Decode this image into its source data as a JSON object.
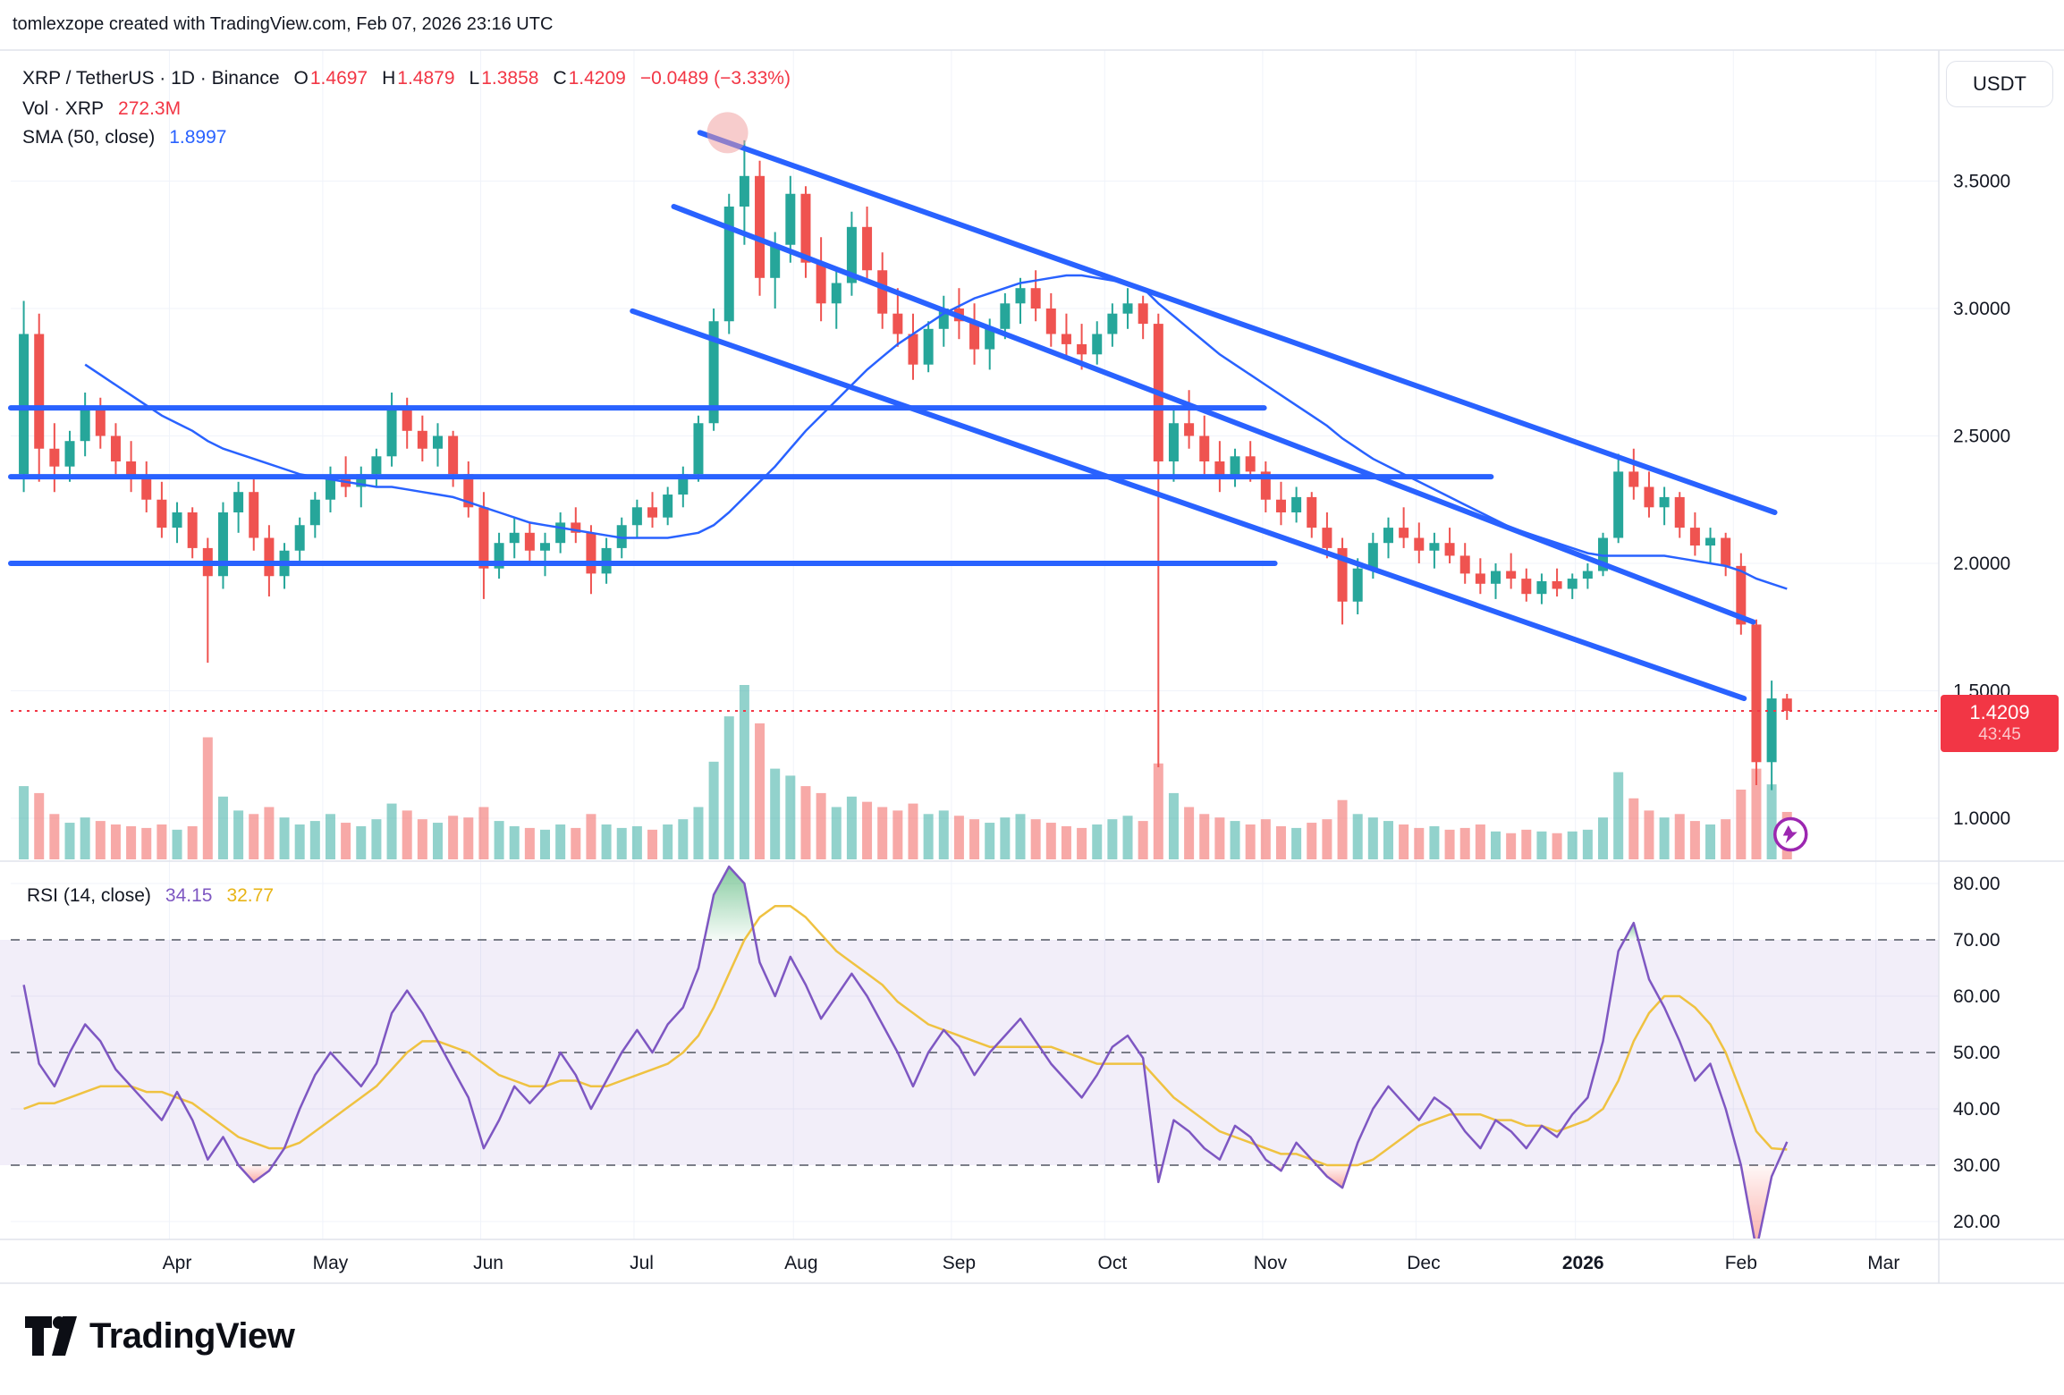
{
  "header": {
    "attribution": "tomlexzope created with TradingView.com, Feb 07, 2026 23:16 UTC"
  },
  "legend": {
    "symbol": "XRP / TetherUS · 1D · Binance",
    "o_label": "O",
    "o": "1.4697",
    "h_label": "H",
    "h": "1.4879",
    "l_label": "L",
    "l": "1.3858",
    "c_label": "C",
    "c": "1.4209",
    "change": "−0.0489 (−3.33%)",
    "vol_label": "Vol · XRP",
    "vol_value": "272.3M",
    "sma_label": "SMA (50, close)",
    "sma_value": "1.8997",
    "rsi_label": "RSI (14, close)",
    "rsi_value": "34.15",
    "rsi_ma_value": "32.77"
  },
  "price_scale": {
    "currency": "USDT",
    "last_price": "1.4209",
    "countdown": "43:45",
    "ticks": [
      {
        "label": "3.5000",
        "value": 3.5
      },
      {
        "label": "3.0000",
        "value": 3.0
      },
      {
        "label": "2.5000",
        "value": 2.5
      },
      {
        "label": "2.0000",
        "value": 2.0
      },
      {
        "label": "1.5000",
        "value": 1.5
      },
      {
        "label": "1.0000",
        "value": 1.0
      }
    ]
  },
  "rsi_scale": {
    "ticks": [
      {
        "label": "80.00",
        "value": 80
      },
      {
        "label": "70.00",
        "value": 70
      },
      {
        "label": "60.00",
        "value": 60
      },
      {
        "label": "50.00",
        "value": 50
      },
      {
        "label": "40.00",
        "value": 40
      },
      {
        "label": "30.00",
        "value": 30
      },
      {
        "label": "20.00",
        "value": 20
      }
    ]
  },
  "time_axis": {
    "months": [
      {
        "label": "Apr",
        "i": 10
      },
      {
        "label": "May",
        "i": 20
      },
      {
        "label": "Jun",
        "i": 30.3
      },
      {
        "label": "Jul",
        "i": 40.3
      },
      {
        "label": "Aug",
        "i": 50.7
      },
      {
        "label": "Sep",
        "i": 61
      },
      {
        "label": "Oct",
        "i": 71
      },
      {
        "label": "Nov",
        "i": 81.3
      },
      {
        "label": "Dec",
        "i": 91.3
      },
      {
        "label": "2026",
        "i": 101.7,
        "bold": true
      },
      {
        "label": "Feb",
        "i": 112
      },
      {
        "label": "Mar",
        "i": 121.3
      }
    ]
  },
  "branding": {
    "logo_text": "TradingView"
  },
  "icons": {
    "last_bar_icon": "lightning-bolt",
    "peak_marker": "pink-ellipse-highlight"
  },
  "colors": {
    "up": "#26a69a",
    "down": "#ef5350",
    "vol_up": "rgba(38,166,154,0.5)",
    "vol_down": "rgba(239,83,80,0.5)",
    "sma": "#2962ff",
    "drawing": "#2962ff",
    "rsi": "#7e57c2",
    "rsi_ma": "#efc241",
    "price_line": "#f23645",
    "badge": "#f23645",
    "grid": "#f0f3fa",
    "border": "#e0e3eb",
    "text": "#131722",
    "rsi_band": "rgba(126,87,194,0.1)",
    "dashed": "#6a6d78",
    "overbought_fill": "#22a050",
    "oversold_fill": "#f44336",
    "marker_pink": "rgba(239,154,154,0.5)",
    "lightning": "#9c27b0"
  },
  "chart_data": {
    "type": "candlestick",
    "symbol": "XRP / TetherUS",
    "timeframe": "1D",
    "exchange": "Binance",
    "panes": [
      "price+volume+sma50",
      "rsi14"
    ],
    "x_start": "2025-03-02",
    "step_days": 3,
    "y_range_main": [
      0.83,
      4.0
    ],
    "rsi_levels": {
      "overbought": 70,
      "middle": 50,
      "oversold": 30
    },
    "last_price": 1.4209,
    "candles": [
      [
        2.35,
        3.03,
        2.28,
        2.9,
        420
      ],
      [
        2.9,
        2.98,
        2.32,
        2.45,
        380
      ],
      [
        2.45,
        2.55,
        2.28,
        2.38,
        260
      ],
      [
        2.38,
        2.52,
        2.32,
        2.48,
        210
      ],
      [
        2.48,
        2.67,
        2.42,
        2.6,
        240
      ],
      [
        2.6,
        2.65,
        2.45,
        2.5,
        220
      ],
      [
        2.5,
        2.55,
        2.35,
        2.4,
        200
      ],
      [
        2.4,
        2.48,
        2.28,
        2.33,
        190
      ],
      [
        2.33,
        2.4,
        2.2,
        2.25,
        180
      ],
      [
        2.25,
        2.32,
        2.1,
        2.14,
        200
      ],
      [
        2.14,
        2.24,
        2.08,
        2.2,
        170
      ],
      [
        2.2,
        2.22,
        2.02,
        2.06,
        190
      ],
      [
        2.06,
        2.1,
        1.61,
        1.95,
        700
      ],
      [
        1.95,
        2.24,
        1.9,
        2.2,
        360
      ],
      [
        2.2,
        2.32,
        2.12,
        2.28,
        280
      ],
      [
        2.28,
        2.34,
        2.05,
        2.1,
        260
      ],
      [
        2.1,
        2.15,
        1.87,
        1.95,
        300
      ],
      [
        1.95,
        2.08,
        1.9,
        2.05,
        240
      ],
      [
        2.05,
        2.18,
        2.0,
        2.15,
        200
      ],
      [
        2.15,
        2.28,
        2.1,
        2.25,
        220
      ],
      [
        2.25,
        2.38,
        2.2,
        2.33,
        260
      ],
      [
        2.33,
        2.42,
        2.26,
        2.3,
        210
      ],
      [
        2.3,
        2.38,
        2.22,
        2.35,
        190
      ],
      [
        2.35,
        2.45,
        2.3,
        2.42,
        230
      ],
      [
        2.42,
        2.67,
        2.38,
        2.6,
        320
      ],
      [
        2.6,
        2.65,
        2.45,
        2.52,
        280
      ],
      [
        2.52,
        2.58,
        2.4,
        2.45,
        230
      ],
      [
        2.45,
        2.55,
        2.38,
        2.5,
        210
      ],
      [
        2.5,
        2.52,
        2.3,
        2.35,
        250
      ],
      [
        2.35,
        2.4,
        2.18,
        2.22,
        240
      ],
      [
        2.22,
        2.28,
        1.86,
        1.98,
        300
      ],
      [
        1.98,
        2.12,
        1.94,
        2.08,
        220
      ],
      [
        2.08,
        2.18,
        2.02,
        2.12,
        190
      ],
      [
        2.12,
        2.16,
        2.0,
        2.05,
        180
      ],
      [
        2.05,
        2.12,
        1.95,
        2.08,
        170
      ],
      [
        2.08,
        2.2,
        2.04,
        2.16,
        200
      ],
      [
        2.16,
        2.22,
        2.08,
        2.12,
        180
      ],
      [
        2.12,
        2.15,
        1.88,
        1.96,
        260
      ],
      [
        1.96,
        2.1,
        1.92,
        2.06,
        200
      ],
      [
        2.06,
        2.18,
        2.02,
        2.15,
        180
      ],
      [
        2.15,
        2.25,
        2.1,
        2.22,
        190
      ],
      [
        2.22,
        2.28,
        2.14,
        2.18,
        170
      ],
      [
        2.18,
        2.3,
        2.15,
        2.27,
        200
      ],
      [
        2.27,
        2.38,
        2.22,
        2.35,
        230
      ],
      [
        2.35,
        2.58,
        2.32,
        2.55,
        300
      ],
      [
        2.55,
        3.0,
        2.52,
        2.95,
        560
      ],
      [
        2.95,
        3.45,
        2.9,
        3.4,
        820
      ],
      [
        3.4,
        3.66,
        3.25,
        3.52,
        1000
      ],
      [
        3.52,
        3.58,
        3.05,
        3.12,
        780
      ],
      [
        3.12,
        3.3,
        3.0,
        3.25,
        520
      ],
      [
        3.25,
        3.52,
        3.18,
        3.45,
        480
      ],
      [
        3.45,
        3.48,
        3.12,
        3.18,
        420
      ],
      [
        3.18,
        3.28,
        2.95,
        3.02,
        380
      ],
      [
        3.02,
        3.15,
        2.92,
        3.1,
        300
      ],
      [
        3.1,
        3.38,
        3.05,
        3.32,
        360
      ],
      [
        3.32,
        3.4,
        3.1,
        3.15,
        330
      ],
      [
        3.15,
        3.22,
        2.92,
        2.98,
        300
      ],
      [
        2.98,
        3.08,
        2.85,
        2.9,
        280
      ],
      [
        2.9,
        2.98,
        2.72,
        2.78,
        320
      ],
      [
        2.78,
        2.95,
        2.75,
        2.92,
        260
      ],
      [
        2.92,
        3.05,
        2.85,
        3.0,
        280
      ],
      [
        3.0,
        3.08,
        2.88,
        2.95,
        250
      ],
      [
        2.95,
        3.02,
        2.78,
        2.84,
        230
      ],
      [
        2.84,
        2.96,
        2.76,
        2.92,
        210
      ],
      [
        2.92,
        3.06,
        2.88,
        3.02,
        240
      ],
      [
        3.02,
        3.12,
        2.94,
        3.08,
        260
      ],
      [
        3.08,
        3.15,
        2.95,
        3.0,
        230
      ],
      [
        3.0,
        3.06,
        2.85,
        2.9,
        210
      ],
      [
        2.9,
        2.98,
        2.8,
        2.86,
        190
      ],
      [
        2.86,
        2.94,
        2.76,
        2.82,
        180
      ],
      [
        2.82,
        2.95,
        2.78,
        2.9,
        200
      ],
      [
        2.9,
        3.02,
        2.85,
        2.98,
        230
      ],
      [
        2.98,
        3.08,
        2.92,
        3.02,
        250
      ],
      [
        3.02,
        3.05,
        2.88,
        2.94,
        220
      ],
      [
        2.94,
        2.98,
        1.2,
        2.4,
        550
      ],
      [
        2.4,
        2.62,
        2.32,
        2.55,
        380
      ],
      [
        2.55,
        2.68,
        2.45,
        2.5,
        300
      ],
      [
        2.5,
        2.58,
        2.35,
        2.4,
        260
      ],
      [
        2.4,
        2.48,
        2.28,
        2.33,
        240
      ],
      [
        2.33,
        2.45,
        2.3,
        2.42,
        220
      ],
      [
        2.42,
        2.48,
        2.32,
        2.36,
        200
      ],
      [
        2.36,
        2.4,
        2.2,
        2.25,
        230
      ],
      [
        2.25,
        2.32,
        2.15,
        2.2,
        190
      ],
      [
        2.2,
        2.3,
        2.16,
        2.26,
        180
      ],
      [
        2.26,
        2.28,
        2.1,
        2.14,
        210
      ],
      [
        2.14,
        2.2,
        2.02,
        2.06,
        230
      ],
      [
        2.06,
        2.1,
        1.76,
        1.85,
        340
      ],
      [
        1.85,
        2.02,
        1.8,
        1.98,
        260
      ],
      [
        1.98,
        2.12,
        1.94,
        2.08,
        240
      ],
      [
        2.08,
        2.18,
        2.02,
        2.14,
        220
      ],
      [
        2.14,
        2.22,
        2.06,
        2.1,
        200
      ],
      [
        2.1,
        2.16,
        2.0,
        2.05,
        180
      ],
      [
        2.05,
        2.12,
        1.98,
        2.08,
        190
      ],
      [
        2.08,
        2.14,
        2.0,
        2.03,
        170
      ],
      [
        2.03,
        2.08,
        1.92,
        1.96,
        180
      ],
      [
        1.96,
        2.02,
        1.88,
        1.92,
        200
      ],
      [
        1.92,
        2.0,
        1.86,
        1.97,
        160
      ],
      [
        1.97,
        2.04,
        1.9,
        1.94,
        150
      ],
      [
        1.94,
        1.98,
        1.85,
        1.88,
        170
      ],
      [
        1.88,
        1.96,
        1.84,
        1.93,
        160
      ],
      [
        1.93,
        1.98,
        1.87,
        1.9,
        150
      ],
      [
        1.9,
        1.96,
        1.86,
        1.94,
        160
      ],
      [
        1.94,
        2.0,
        1.9,
        1.97,
        170
      ],
      [
        1.97,
        2.12,
        1.95,
        2.1,
        240
      ],
      [
        2.1,
        2.43,
        2.08,
        2.36,
        500
      ],
      [
        2.36,
        2.45,
        2.25,
        2.3,
        350
      ],
      [
        2.3,
        2.36,
        2.18,
        2.22,
        280
      ],
      [
        2.22,
        2.3,
        2.15,
        2.26,
        240
      ],
      [
        2.26,
        2.28,
        2.1,
        2.14,
        260
      ],
      [
        2.14,
        2.2,
        2.03,
        2.07,
        220
      ],
      [
        2.07,
        2.14,
        2.0,
        2.1,
        200
      ],
      [
        2.1,
        2.12,
        1.95,
        1.99,
        230
      ],
      [
        1.99,
        2.04,
        1.72,
        1.76,
        400
      ],
      [
        1.76,
        1.78,
        1.13,
        1.22,
        520
      ],
      [
        1.22,
        1.54,
        1.11,
        1.47,
        430
      ],
      [
        1.4697,
        1.4879,
        1.3858,
        1.4209,
        272
      ]
    ],
    "sma50": [
      null,
      null,
      null,
      null,
      2.78,
      2.74,
      2.7,
      2.66,
      2.62,
      2.58,
      2.55,
      2.52,
      2.48,
      2.45,
      2.43,
      2.41,
      2.39,
      2.37,
      2.35,
      2.34,
      2.33,
      2.32,
      2.31,
      2.3,
      2.3,
      2.29,
      2.28,
      2.27,
      2.26,
      2.24,
      2.22,
      2.2,
      2.18,
      2.16,
      2.15,
      2.14,
      2.13,
      2.12,
      2.11,
      2.1,
      2.1,
      2.1,
      2.1,
      2.11,
      2.12,
      2.15,
      2.2,
      2.26,
      2.32,
      2.38,
      2.45,
      2.52,
      2.58,
      2.64,
      2.7,
      2.76,
      2.81,
      2.86,
      2.9,
      2.94,
      2.98,
      3.01,
      3.04,
      3.06,
      3.08,
      3.1,
      3.11,
      3.12,
      3.13,
      3.13,
      3.12,
      3.11,
      3.1,
      3.08,
      3.02,
      2.97,
      2.92,
      2.87,
      2.82,
      2.78,
      2.74,
      2.7,
      2.66,
      2.62,
      2.58,
      2.54,
      2.49,
      2.45,
      2.41,
      2.38,
      2.35,
      2.32,
      2.29,
      2.26,
      2.23,
      2.2,
      2.17,
      2.14,
      2.12,
      2.1,
      2.08,
      2.06,
      2.04,
      2.03,
      2.03,
      2.03,
      2.03,
      2.03,
      2.02,
      2.01,
      2.0,
      1.99,
      1.97,
      1.94,
      1.92,
      1.9
    ],
    "rsi": [
      62,
      48,
      44,
      50,
      55,
      52,
      47,
      44,
      41,
      38,
      43,
      38,
      31,
      35,
      30,
      27,
      29,
      33,
      40,
      46,
      50,
      47,
      44,
      48,
      57,
      61,
      57,
      52,
      47,
      42,
      33,
      38,
      44,
      41,
      44,
      50,
      46,
      40,
      45,
      50,
      54,
      50,
      55,
      58,
      65,
      78,
      83,
      80,
      66,
      60,
      67,
      62,
      56,
      60,
      64,
      60,
      55,
      50,
      44,
      50,
      54,
      51,
      46,
      50,
      53,
      56,
      52,
      48,
      45,
      42,
      46,
      51,
      53,
      49,
      27,
      38,
      36,
      33,
      31,
      37,
      35,
      31,
      29,
      34,
      31,
      28,
      26,
      34,
      40,
      44,
      41,
      38,
      42,
      40,
      36,
      33,
      38,
      36,
      33,
      37,
      35,
      39,
      42,
      52,
      68,
      73,
      63,
      58,
      52,
      45,
      48,
      40,
      30,
      15,
      28,
      34.15
    ],
    "rsi_ma": [
      40,
      41,
      41,
      42,
      43,
      44,
      44,
      44,
      43,
      43,
      42,
      41,
      39,
      37,
      35,
      34,
      33,
      33,
      34,
      36,
      38,
      40,
      42,
      44,
      47,
      50,
      52,
      52,
      51,
      50,
      48,
      46,
      45,
      44,
      44,
      45,
      45,
      44,
      44,
      45,
      46,
      47,
      48,
      50,
      53,
      58,
      64,
      70,
      74,
      76,
      76,
      74,
      71,
      68,
      66,
      64,
      62,
      59,
      57,
      55,
      54,
      53,
      52,
      51,
      51,
      51,
      51,
      51,
      50,
      49,
      48,
      48,
      48,
      48,
      45,
      42,
      40,
      38,
      36,
      35,
      34,
      33,
      32,
      32,
      31,
      30,
      30,
      30,
      31,
      33,
      35,
      37,
      38,
      39,
      39,
      39,
      38,
      38,
      37,
      37,
      36,
      37,
      38,
      40,
      45,
      52,
      57,
      60,
      60,
      58,
      55,
      50,
      43,
      36,
      33,
      32.77
    ],
    "drawings": {
      "trend_lines": [
        {
          "i1": 44.1,
          "p1": 3.69,
          "i2": 114.2,
          "p2": 2.2
        },
        {
          "i1": 42.4,
          "p1": 3.4,
          "i2": 112.8,
          "p2": 1.77
        },
        {
          "i1": 39.7,
          "p1": 2.99,
          "i2": 112.2,
          "p2": 1.47
        }
      ],
      "horizontal_lines": [
        {
          "price": 2.61,
          "i_end": 80.9
        },
        {
          "price": 2.34,
          "i_end": 95.7
        },
        {
          "price": 2.0,
          "i_end": 81.6
        }
      ],
      "ellipse_marker": {
        "i": 45.9,
        "price": 3.69,
        "radius": 23
      }
    }
  }
}
